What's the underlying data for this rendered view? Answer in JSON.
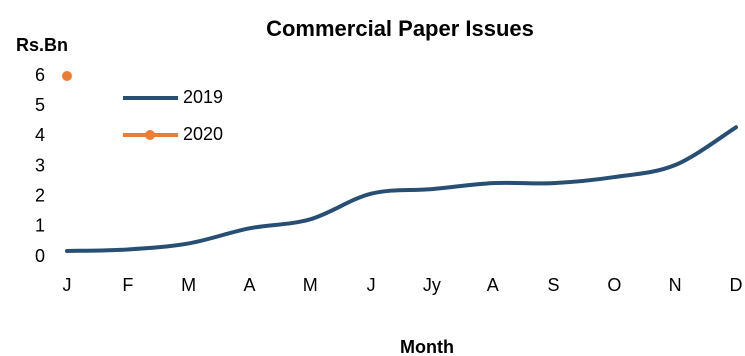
{
  "chart_data": {
    "type": "line",
    "title": "Commercial Paper Issues",
    "y_label": "Rs.Bn",
    "x_label": "Month",
    "categories": [
      "J",
      "F",
      "M",
      "A",
      "M",
      "J",
      "Jy",
      "A",
      "S",
      "O",
      "N",
      "D"
    ],
    "series": [
      {
        "name": "2019",
        "color": "#264f73",
        "values": [
          0.2,
          0.25,
          0.45,
          0.95,
          1.25,
          2.1,
          2.25,
          2.45,
          2.45,
          2.65,
          3.05,
          4.3
        ]
      },
      {
        "name": "2020",
        "color": "#ed7d31",
        "values": [
          6,
          null,
          null,
          null,
          null,
          null,
          null,
          null,
          null,
          null,
          null,
          null
        ]
      }
    ],
    "ylim": [
      0,
      6
    ],
    "yticks": [
      0,
      1,
      2,
      3,
      4,
      5,
      6
    ]
  }
}
